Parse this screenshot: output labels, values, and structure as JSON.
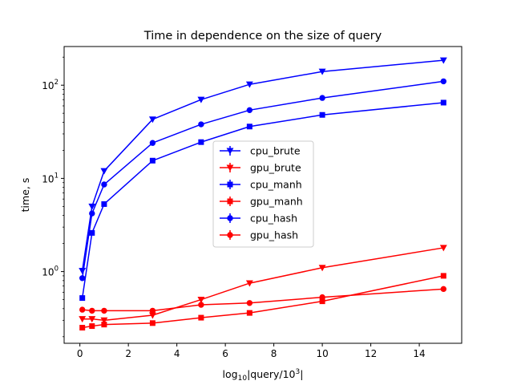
{
  "chart_data": {
    "type": "line",
    "title": "Time in dependence on the size of query",
    "xlabel": {
      "prefix": "log",
      "sub": "10",
      "mid": "|query/10",
      "sup": "3",
      "suffix": "|"
    },
    "ylabel": "time, s",
    "xlim": [
      -0.65,
      15.75
    ],
    "ylim": [
      0.17,
      260
    ],
    "y_scale": "log",
    "grid": false,
    "legend_placement": "center",
    "x_ticks": [
      {
        "value": 0,
        "label": "0"
      },
      {
        "value": 2,
        "label": "2"
      },
      {
        "value": 4,
        "label": "4"
      },
      {
        "value": 6,
        "label": "6"
      },
      {
        "value": 8,
        "label": "8"
      },
      {
        "value": 10,
        "label": "10"
      },
      {
        "value": 12,
        "label": "12"
      },
      {
        "value": 14,
        "label": "14"
      }
    ],
    "y_ticks": [
      {
        "value": 1,
        "base": "10",
        "exp": "0"
      },
      {
        "value": 10,
        "base": "10",
        "exp": "1"
      },
      {
        "value": 100,
        "base": "10",
        "exp": "2"
      }
    ],
    "x": [
      0.1,
      0.5,
      1,
      3,
      5,
      7,
      10,
      15
    ],
    "series": [
      {
        "name": "cpu_brute",
        "color": "#0000ff",
        "marker": "triangle-down",
        "values": [
          1.02,
          5.0,
          12.0,
          43.0,
          70.0,
          102.0,
          140.0,
          185.0
        ]
      },
      {
        "name": "gpu_brute",
        "color": "#ff0000",
        "marker": "triangle-down",
        "values": [
          0.31,
          0.31,
          0.3,
          0.34,
          0.5,
          0.75,
          1.1,
          1.8
        ]
      },
      {
        "name": "cpu_manh",
        "color": "#0000ff",
        "marker": "square",
        "values": [
          0.52,
          2.6,
          5.3,
          15.5,
          24.5,
          36.0,
          48.0,
          65.0
        ]
      },
      {
        "name": "gpu_manh",
        "color": "#ff0000",
        "marker": "square",
        "values": [
          0.25,
          0.26,
          0.27,
          0.28,
          0.32,
          0.36,
          0.48,
          0.9
        ]
      },
      {
        "name": "cpu_hash",
        "color": "#0000ff",
        "marker": "circle",
        "values": [
          0.85,
          4.2,
          8.6,
          24.0,
          38.0,
          54.0,
          73.0,
          110.0
        ]
      },
      {
        "name": "gpu_hash",
        "color": "#ff0000",
        "marker": "circle",
        "values": [
          0.39,
          0.38,
          0.38,
          0.38,
          0.44,
          0.46,
          0.53,
          0.65
        ]
      }
    ]
  }
}
